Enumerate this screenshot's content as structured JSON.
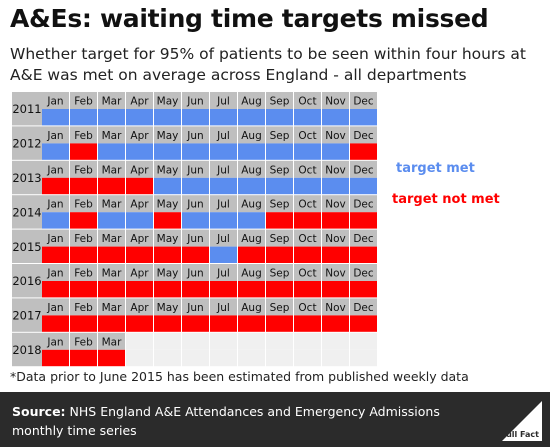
{
  "header": {
    "title": "A&Es: waiting time targets missed",
    "subtitle": "Whether target for 95% of patients to be seen within four hours at A&E was met on average across England - all departments"
  },
  "legend": {
    "met": "target met",
    "not_met": "target not met"
  },
  "colors": {
    "met": "#5b8def",
    "not_met": "#ff0000",
    "empty": "#f0f0f0",
    "label_bg": "#bfbfbf"
  },
  "footnote": "*Data prior to June 2015 has been estimated from published weekly data",
  "source": {
    "label": "Source:",
    "text": "NHS England A&E Attendances and Emergency Admissions monthly time series"
  },
  "logo": {
    "text": "Full Fact",
    "icon": "full-fact-logo-icon"
  },
  "chart_data": {
    "type": "heatmap",
    "rows": [
      "2011",
      "2012",
      "2013",
      "2014",
      "2015",
      "2016",
      "2017",
      "2018"
    ],
    "columns": [
      "Jan",
      "Feb",
      "Mar",
      "Apr",
      "May",
      "Jun",
      "Jul",
      "Aug",
      "Sep",
      "Oct",
      "Nov",
      "Dec"
    ],
    "categories": [
      "target met",
      "target not met"
    ],
    "values": [
      [
        1,
        1,
        1,
        1,
        1,
        1,
        1,
        1,
        1,
        1,
        1,
        1
      ],
      [
        1,
        0,
        1,
        1,
        1,
        1,
        1,
        1,
        1,
        1,
        1,
        0
      ],
      [
        0,
        0,
        0,
        0,
        1,
        1,
        1,
        1,
        1,
        1,
        1,
        1
      ],
      [
        1,
        0,
        1,
        1,
        0,
        1,
        1,
        1,
        0,
        0,
        0,
        0
      ],
      [
        0,
        0,
        0,
        0,
        0,
        0,
        1,
        0,
        0,
        0,
        0,
        0
      ],
      [
        0,
        0,
        0,
        0,
        0,
        0,
        0,
        0,
        0,
        0,
        0,
        0
      ],
      [
        0,
        0,
        0,
        0,
        0,
        0,
        0,
        0,
        0,
        0,
        0,
        0
      ],
      [
        0,
        0,
        0,
        null,
        null,
        null,
        null,
        null,
        null,
        null,
        null,
        null
      ]
    ]
  }
}
